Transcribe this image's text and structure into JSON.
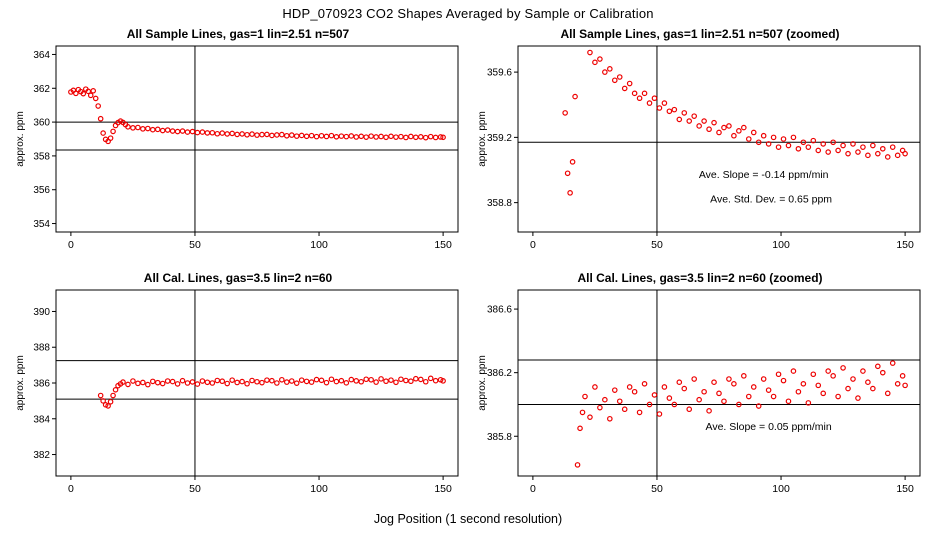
{
  "page": {
    "main_title": "HDP_070923  CO2 Shapes Averaged by Sample or Calibration",
    "x_axis_label": "Jog Position (1 second resolution)"
  },
  "colors": {
    "points": "#ee0000",
    "axis": "#000000"
  },
  "chart_data": {
    "type": "scatter",
    "grid": "off",
    "legend": "none",
    "series": {
      "sample": [
        [
          0,
          361.78
        ],
        [
          1,
          361.88
        ],
        [
          2,
          361.7
        ],
        [
          3,
          361.92
        ],
        [
          4,
          361.8
        ],
        [
          5,
          361.68
        ],
        [
          6,
          361.95
        ],
        [
          7,
          361.82
        ],
        [
          8,
          361.58
        ],
        [
          9,
          361.85
        ],
        [
          10,
          361.4
        ],
        [
          11,
          360.95
        ],
        [
          12,
          360.2
        ],
        [
          13,
          359.35
        ],
        [
          14,
          358.98
        ],
        [
          15,
          358.86
        ],
        [
          16,
          359.05
        ],
        [
          17,
          359.45
        ],
        [
          18,
          359.8
        ],
        [
          19,
          359.97
        ],
        [
          20,
          360.06
        ],
        [
          21,
          359.98
        ],
        [
          22,
          359.85
        ],
        [
          23,
          359.72
        ],
        [
          25,
          359.66
        ],
        [
          27,
          359.68
        ],
        [
          29,
          359.6
        ],
        [
          31,
          359.62
        ],
        [
          33,
          359.55
        ],
        [
          35,
          359.57
        ],
        [
          37,
          359.5
        ],
        [
          39,
          359.53
        ],
        [
          41,
          359.47
        ],
        [
          43,
          359.44
        ],
        [
          45,
          359.47
        ],
        [
          47,
          359.41
        ],
        [
          49,
          359.44
        ],
        [
          51,
          359.38
        ],
        [
          53,
          359.41
        ],
        [
          55,
          359.36
        ],
        [
          57,
          359.37
        ],
        [
          59,
          359.31
        ],
        [
          61,
          359.35
        ],
        [
          63,
          359.3
        ],
        [
          65,
          359.33
        ],
        [
          67,
          359.27
        ],
        [
          69,
          359.3
        ],
        [
          71,
          359.25
        ],
        [
          73,
          359.29
        ],
        [
          75,
          359.23
        ],
        [
          77,
          359.26
        ],
        [
          79,
          359.27
        ],
        [
          81,
          359.21
        ],
        [
          83,
          359.24
        ],
        [
          85,
          359.26
        ],
        [
          87,
          359.19
        ],
        [
          89,
          359.23
        ],
        [
          91,
          359.17
        ],
        [
          93,
          359.21
        ],
        [
          95,
          359.16
        ],
        [
          97,
          359.2
        ],
        [
          99,
          359.14
        ],
        [
          101,
          359.19
        ],
        [
          103,
          359.15
        ],
        [
          105,
          359.2
        ],
        [
          107,
          359.13
        ],
        [
          109,
          359.17
        ],
        [
          111,
          359.14
        ],
        [
          113,
          359.18
        ],
        [
          115,
          359.12
        ],
        [
          117,
          359.16
        ],
        [
          119,
          359.11
        ],
        [
          121,
          359.17
        ],
        [
          123,
          359.12
        ],
        [
          125,
          359.15
        ],
        [
          127,
          359.1
        ],
        [
          129,
          359.16
        ],
        [
          131,
          359.11
        ],
        [
          133,
          359.14
        ],
        [
          135,
          359.09
        ],
        [
          137,
          359.15
        ],
        [
          139,
          359.1
        ],
        [
          141,
          359.13
        ],
        [
          143,
          359.08
        ],
        [
          145,
          359.14
        ],
        [
          147,
          359.09
        ],
        [
          149,
          359.12
        ],
        [
          150,
          359.1
        ]
      ],
      "cal": [
        [
          12,
          385.3
        ],
        [
          13,
          385.0
        ],
        [
          14,
          384.78
        ],
        [
          15,
          384.72
        ],
        [
          16,
          384.95
        ],
        [
          17,
          385.3
        ],
        [
          18,
          385.62
        ],
        [
          19,
          385.85
        ],
        [
          20,
          385.95
        ],
        [
          21,
          386.05
        ],
        [
          23,
          385.92
        ],
        [
          25,
          386.11
        ],
        [
          27,
          385.98
        ],
        [
          29,
          386.03
        ],
        [
          31,
          385.91
        ],
        [
          33,
          386.09
        ],
        [
          35,
          386.02
        ],
        [
          37,
          385.97
        ],
        [
          39,
          386.11
        ],
        [
          41,
          386.08
        ],
        [
          43,
          385.95
        ],
        [
          45,
          386.13
        ],
        [
          47,
          386.0
        ],
        [
          49,
          386.06
        ],
        [
          51,
          385.94
        ],
        [
          53,
          386.11
        ],
        [
          55,
          386.04
        ],
        [
          57,
          386.0
        ],
        [
          59,
          386.14
        ],
        [
          61,
          386.1
        ],
        [
          63,
          385.97
        ],
        [
          65,
          386.16
        ],
        [
          67,
          386.03
        ],
        [
          69,
          386.08
        ],
        [
          71,
          385.96
        ],
        [
          73,
          386.14
        ],
        [
          75,
          386.07
        ],
        [
          77,
          386.02
        ],
        [
          79,
          386.16
        ],
        [
          81,
          386.13
        ],
        [
          83,
          386.0
        ],
        [
          85,
          386.18
        ],
        [
          87,
          386.05
        ],
        [
          89,
          386.11
        ],
        [
          91,
          385.99
        ],
        [
          93,
          386.16
        ],
        [
          95,
          386.09
        ],
        [
          97,
          386.05
        ],
        [
          99,
          386.19
        ],
        [
          101,
          386.15
        ],
        [
          103,
          386.02
        ],
        [
          105,
          386.21
        ],
        [
          107,
          386.08
        ],
        [
          109,
          386.13
        ],
        [
          111,
          386.01
        ],
        [
          113,
          386.19
        ],
        [
          115,
          386.12
        ],
        [
          117,
          386.07
        ],
        [
          119,
          386.21
        ],
        [
          121,
          386.18
        ],
        [
          123,
          386.05
        ],
        [
          125,
          386.23
        ],
        [
          127,
          386.1
        ],
        [
          129,
          386.16
        ],
        [
          131,
          386.04
        ],
        [
          133,
          386.21
        ],
        [
          135,
          386.14
        ],
        [
          137,
          386.1
        ],
        [
          139,
          386.24
        ],
        [
          141,
          386.2
        ],
        [
          143,
          386.07
        ],
        [
          145,
          386.26
        ],
        [
          147,
          386.13
        ],
        [
          149,
          386.18
        ],
        [
          150,
          386.12
        ]
      ]
    },
    "panels": [
      {
        "title": "All Sample Lines, gas=1 lin=2.51 n=507",
        "series": "sample",
        "ylabel": "approx. ppm",
        "xlim": [
          -6,
          156
        ],
        "ylim": [
          353.5,
          364.5
        ],
        "xticks": [
          0,
          50,
          100,
          150
        ],
        "yticks": [
          354,
          356,
          358,
          360,
          362,
          364
        ],
        "hlines": [
          360,
          358.35
        ],
        "vlines": [
          50
        ],
        "annotations": []
      },
      {
        "title": "All Sample Lines, gas=1 lin=2.51 n=507 (zoomed)",
        "series": "sample",
        "ylabel": "approx. ppm",
        "xlim": [
          -6,
          156
        ],
        "ylim": [
          358.62,
          359.76
        ],
        "xticks": [
          0,
          50,
          100,
          150
        ],
        "yticks": [
          358.8,
          359.2,
          359.6
        ],
        "hlines": [
          359.17
        ],
        "vlines": [
          50
        ],
        "annotations": [
          {
            "x": 93,
            "y": 358.95,
            "text": "Ave. Slope =  -0.14  ppm/min"
          },
          {
            "x": 96,
            "y": 358.8,
            "text": "Ave. Std. Dev. =  0.65  ppm"
          }
        ]
      },
      {
        "title": "All Cal. Lines, gas=3.5 lin=2 n=60",
        "series": "cal",
        "ylabel": "approx. ppm",
        "xlim": [
          -6,
          156
        ],
        "ylim": [
          380.8,
          391.2
        ],
        "xticks": [
          0,
          50,
          100,
          150
        ],
        "yticks": [
          382,
          384,
          386,
          388,
          390
        ],
        "hlines": [
          387.25,
          385.1
        ],
        "vlines": [
          50
        ],
        "annotations": []
      },
      {
        "title": "All Cal. Lines, gas=3.5 lin=2 n=60 (zoomed)",
        "series": "cal",
        "ylabel": "approx. ppm",
        "xlim": [
          -6,
          156
        ],
        "ylim": [
          385.55,
          386.72
        ],
        "xticks": [
          0,
          50,
          100,
          150
        ],
        "yticks": [
          385.8,
          386.2,
          386.6
        ],
        "hlines": [
          386.28,
          386.0
        ],
        "vlines": [
          50
        ],
        "annotations": [
          {
            "x": 95,
            "y": 385.84,
            "text": "Ave. Slope =  0.05  ppm/min"
          }
        ]
      }
    ]
  }
}
